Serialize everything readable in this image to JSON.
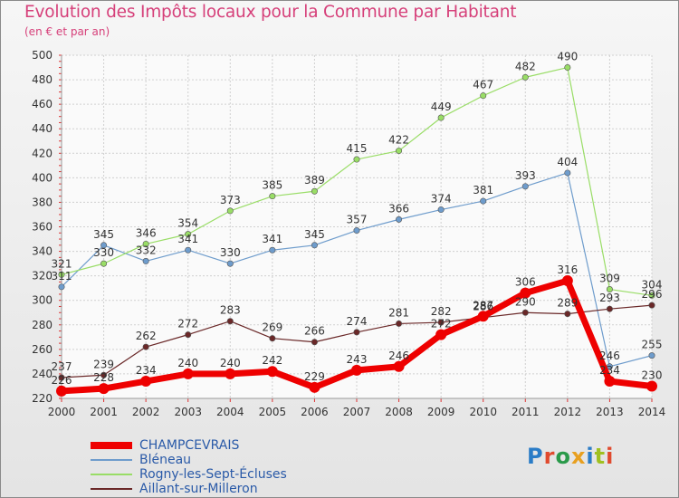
{
  "title": "Evolution des Impôts locaux pour la Commune par Habitant",
  "subtitle": "(en € et par an)",
  "logo_letters": [
    "P",
    "r",
    "o",
    "x",
    "i",
    "t",
    "i"
  ],
  "logo_colors": [
    "#2a7cc7",
    "#e04a2e",
    "#2a9a4a",
    "#e8a020",
    "#2a7cc7",
    "#a0c020",
    "#e04a2e"
  ],
  "chart_data": {
    "type": "line",
    "title": "Evolution des Impôts locaux pour la Commune par Habitant",
    "subtitle": "(en € et par an)",
    "x": [
      "2000",
      "2001",
      "2002",
      "2003",
      "2004",
      "2005",
      "2006",
      "2007",
      "2008",
      "2009",
      "2010",
      "2011",
      "2012",
      "2013",
      "2014"
    ],
    "yticks": [
      220,
      240,
      260,
      280,
      300,
      320,
      340,
      360,
      380,
      400,
      420,
      440,
      460,
      480,
      500
    ],
    "ylim": [
      220,
      500
    ],
    "grid": true,
    "legend_position": "bottom-left",
    "series": [
      {
        "name": "CHAMPCEVRAIS",
        "color": "#ee0000",
        "values": [
          226,
          228,
          234,
          240,
          240,
          242,
          229,
          243,
          246,
          272,
          287,
          306,
          316,
          234,
          230
        ]
      },
      {
        "name": "Bléneau",
        "color": "#6e9ccc",
        "values": [
          311,
          345,
          332,
          341,
          330,
          341,
          345,
          357,
          366,
          374,
          381,
          393,
          404,
          246,
          255
        ]
      },
      {
        "name": "Rogny-les-Sept-Écluses",
        "color": "#99dd66",
        "values": [
          321,
          330,
          346,
          354,
          373,
          385,
          389,
          415,
          422,
          449,
          467,
          482,
          490,
          309,
          304
        ]
      },
      {
        "name": "Aillant-sur-Milleron",
        "color": "#6a2828",
        "values": [
          237,
          239,
          262,
          272,
          283,
          269,
          266,
          274,
          281,
          282,
          286,
          290,
          289,
          293,
          296
        ]
      }
    ]
  }
}
